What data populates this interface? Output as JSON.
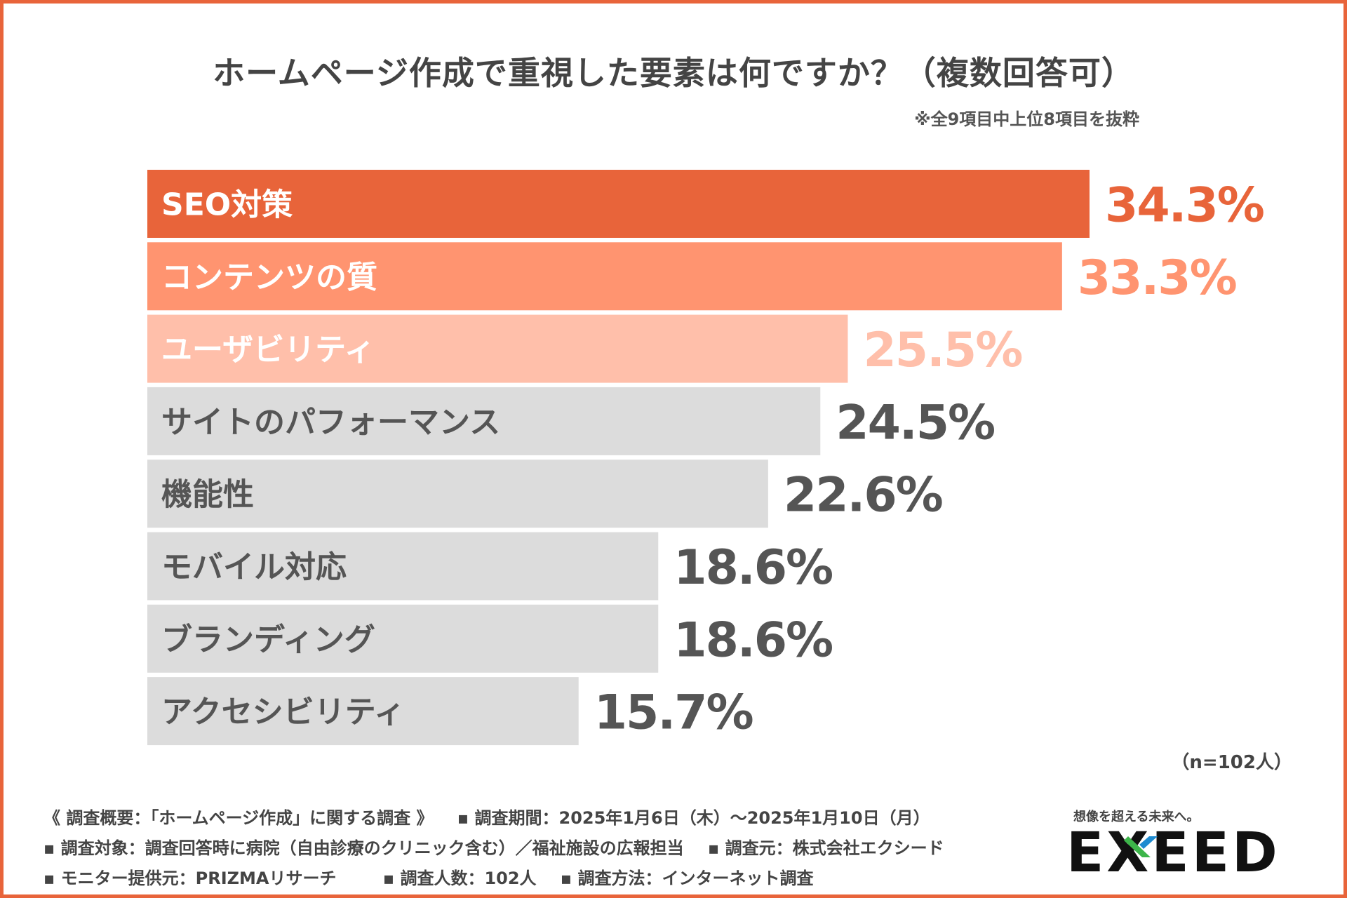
{
  "title": "ホームページ作成で重視した要素は何ですか？（複数回答可）",
  "note": "※全9項目中上位8項目を抜粋",
  "sample_size": "（n=102人）",
  "colors": {
    "frame": "#e8643a",
    "bar_1": "#e8643a",
    "bar_2": "#ff9470",
    "bar_3": "#ffbfaa",
    "bar_other": "#dcdcdc",
    "label_light": "#ffffff",
    "label_dark": "#555555",
    "value_dark": "#555555"
  },
  "chart_data": {
    "type": "bar",
    "orientation": "horizontal",
    "title": "ホームページ作成で重視した要素は何ですか？（複数回答可）",
    "categories": [
      "SEO対策",
      "コンテンツの質",
      "ユーザビリティ",
      "サイトのパフォーマンス",
      "機能性",
      "モバイル対応",
      "ブランディング",
      "アクセシビリティ"
    ],
    "values": [
      34.3,
      33.3,
      25.5,
      24.5,
      22.6,
      18.6,
      18.6,
      15.7
    ],
    "value_labels": [
      "34.3%",
      "33.3%",
      "25.5%",
      "24.5%",
      "22.6%",
      "18.6%",
      "18.6%",
      "15.7%"
    ],
    "unit": "%",
    "xlim": [
      0,
      34.3
    ],
    "grid": false,
    "legend": "none"
  },
  "footer": {
    "line1": [
      "《 調査概要：「ホームページ作成」に関する調査 》",
      "▪ 調査期間：2025年1月6日（木）〜2025年1月10日（月）"
    ],
    "line2": [
      "▪ 調査対象：調査回答時に病院（自由診療のクリニック含む）／福祉施設の広報担当",
      "▪ 調査元：株式会社エクシード"
    ],
    "line3": [
      "▪ モニター提供元：PRIZMAリサーチ",
      "▪ 調査人数：102人",
      "▪ 調査方法：インターネット調査"
    ]
  },
  "logo": {
    "tagline": "想像を超える未来へ。",
    "name": "EXEED"
  }
}
